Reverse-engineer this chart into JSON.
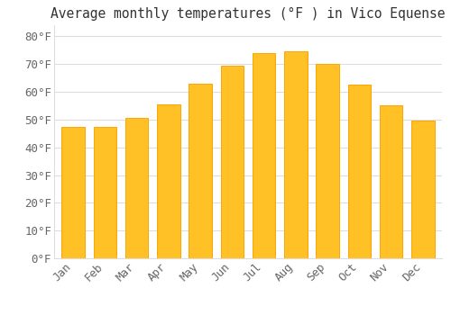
{
  "title": "Average monthly temperatures (°F ) in Vico Equense",
  "months": [
    "Jan",
    "Feb",
    "Mar",
    "Apr",
    "May",
    "Jun",
    "Jul",
    "Aug",
    "Sep",
    "Oct",
    "Nov",
    "Dec"
  ],
  "values": [
    47.5,
    47.5,
    50.5,
    55.5,
    63.0,
    69.5,
    74.0,
    74.5,
    70.0,
    62.5,
    55.0,
    49.5
  ],
  "bar_color": "#FFC125",
  "bar_edge_color": "#FFA500",
  "background_color": "#FFFFFF",
  "grid_color": "#DDDDDD",
  "text_color": "#666666",
  "ylim": [
    0,
    84
  ],
  "yticks": [
    0,
    10,
    20,
    30,
    40,
    50,
    60,
    70,
    80
  ],
  "title_fontsize": 10.5,
  "tick_fontsize": 9
}
